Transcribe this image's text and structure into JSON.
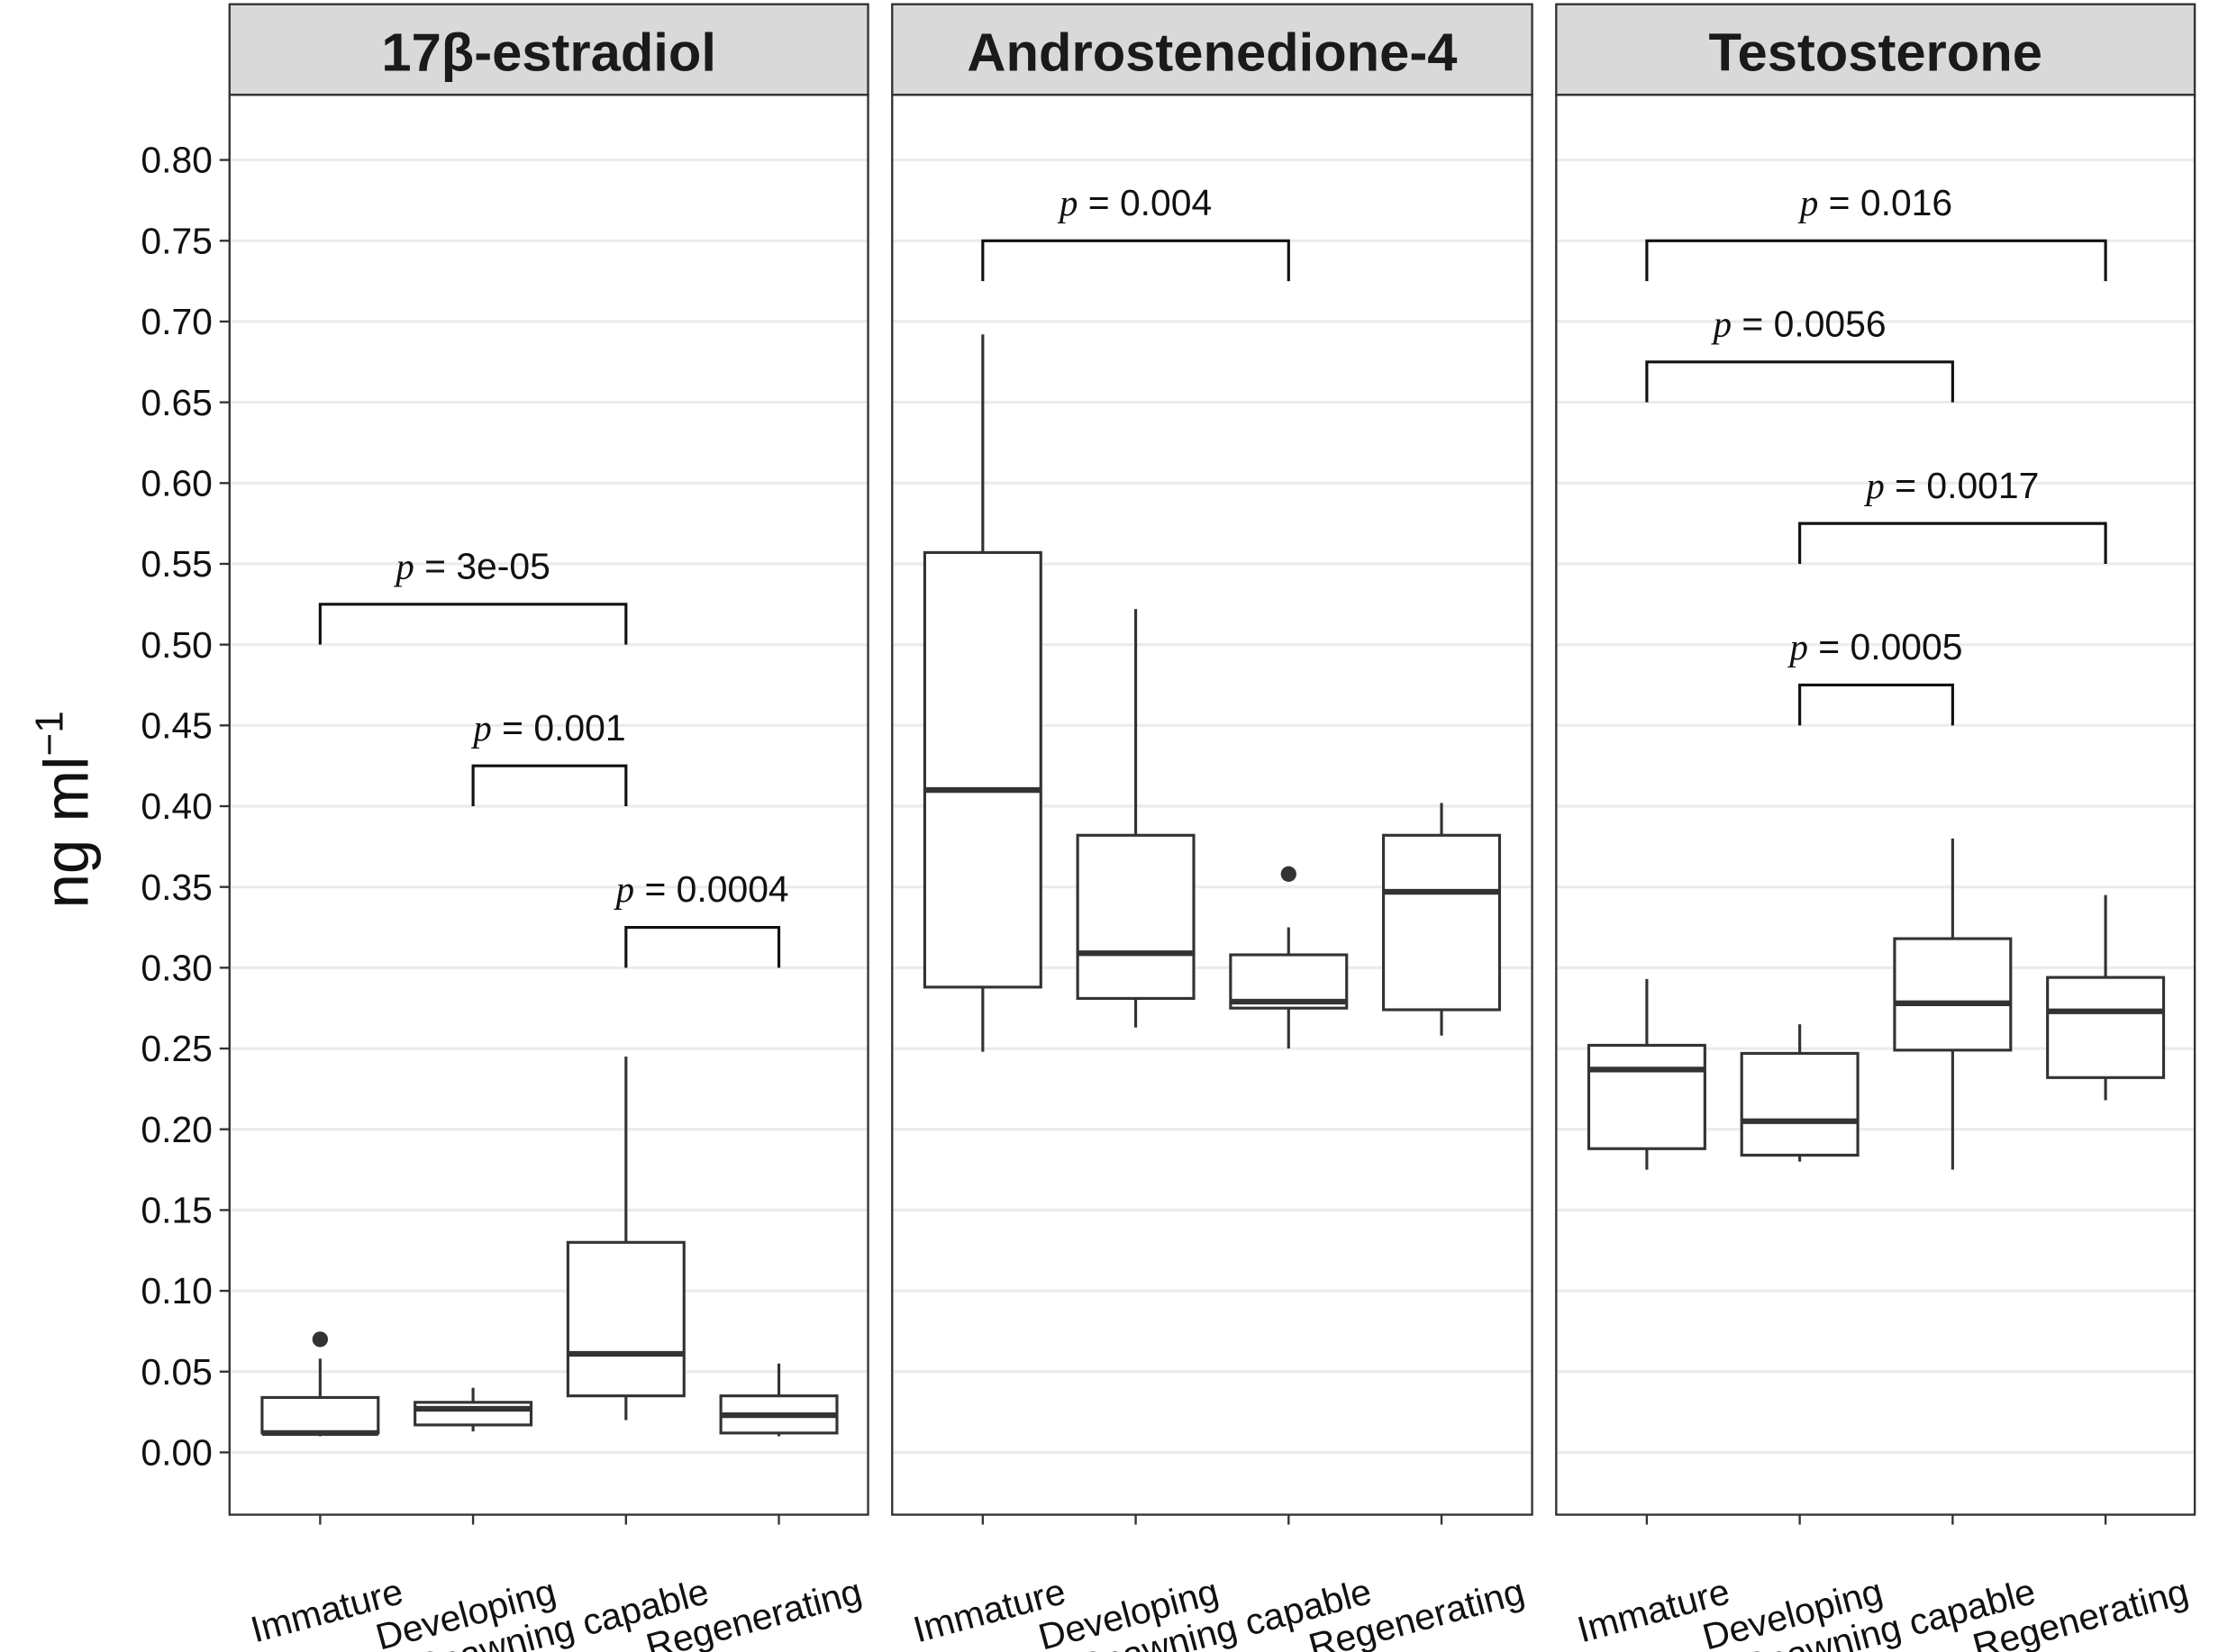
{
  "chart_data": {
    "type": "boxplot",
    "ylabel": "ng ml",
    "ylabel_superscript": "−1",
    "ylim": [
      -0.04,
      0.84
    ],
    "yticks": [
      "0.00",
      "0.05",
      "0.10",
      "0.15",
      "0.20",
      "0.25",
      "0.30",
      "0.35",
      "0.40",
      "0.45",
      "0.50",
      "0.55",
      "0.60",
      "0.65",
      "0.70",
      "0.75",
      "0.80"
    ],
    "categories": [
      "Immature",
      "Developing",
      "Spawning capable",
      "Regenerating"
    ],
    "grid": "horizontal major",
    "panels": [
      {
        "title": "17β-estradiol",
        "boxes": [
          {
            "min": 0.01,
            "q1": 0.012,
            "median": 0.012,
            "q3": 0.034,
            "max": 0.058,
            "outliers": [
              0.07
            ]
          },
          {
            "min": 0.013,
            "q1": 0.017,
            "median": 0.027,
            "q3": 0.031,
            "max": 0.04,
            "outliers": []
          },
          {
            "min": 0.02,
            "q1": 0.035,
            "median": 0.061,
            "q3": 0.13,
            "max": 0.245,
            "outliers": []
          },
          {
            "min": 0.01,
            "q1": 0.012,
            "median": 0.023,
            "q3": 0.035,
            "max": 0.055,
            "outliers": []
          }
        ],
        "comparisons": [
          {
            "from": 0,
            "to": 2,
            "y": 0.525,
            "p_label": "p",
            "p_value": "= 3e-05"
          },
          {
            "from": 1,
            "to": 2,
            "y": 0.425,
            "p_label": "p",
            "p_value": "= 0.001"
          },
          {
            "from": 2,
            "to": 3,
            "y": 0.325,
            "p_label": "p",
            "p_value": "= 0.0004"
          }
        ]
      },
      {
        "title": "Androstenedione-4",
        "boxes": [
          {
            "min": 0.248,
            "q1": 0.288,
            "median": 0.41,
            "q3": 0.557,
            "max": 0.692,
            "outliers": []
          },
          {
            "min": 0.263,
            "q1": 0.281,
            "median": 0.309,
            "q3": 0.382,
            "max": 0.522,
            "outliers": []
          },
          {
            "min": 0.25,
            "q1": 0.275,
            "median": 0.279,
            "q3": 0.308,
            "max": 0.325,
            "outliers": [
              0.358
            ]
          },
          {
            "min": 0.258,
            "q1": 0.274,
            "median": 0.347,
            "q3": 0.382,
            "max": 0.402,
            "outliers": []
          }
        ],
        "comparisons": [
          {
            "from": 0,
            "to": 2,
            "y": 0.75,
            "p_label": "p",
            "p_value": "= 0.004"
          }
        ]
      },
      {
        "title": "Testosterone",
        "boxes": [
          {
            "min": 0.175,
            "q1": 0.188,
            "median": 0.237,
            "q3": 0.252,
            "max": 0.293,
            "outliers": []
          },
          {
            "min": 0.18,
            "q1": 0.184,
            "median": 0.205,
            "q3": 0.247,
            "max": 0.265,
            "outliers": []
          },
          {
            "min": 0.175,
            "q1": 0.249,
            "median": 0.278,
            "q3": 0.318,
            "max": 0.38,
            "outliers": []
          },
          {
            "min": 0.218,
            "q1": 0.232,
            "median": 0.273,
            "q3": 0.294,
            "max": 0.345,
            "outliers": []
          }
        ],
        "comparisons": [
          {
            "from": 0,
            "to": 3,
            "y": 0.75,
            "p_label": "p",
            "p_value": "= 0.016"
          },
          {
            "from": 0,
            "to": 2,
            "y": 0.675,
            "p_label": "p",
            "p_value": "= 0.0056"
          },
          {
            "from": 1,
            "to": 3,
            "y": 0.575,
            "p_label": "p",
            "p_value": "= 0.0017"
          },
          {
            "from": 1,
            "to": 2,
            "y": 0.475,
            "p_label": "p",
            "p_value": "= 0.0005"
          }
        ]
      }
    ]
  }
}
